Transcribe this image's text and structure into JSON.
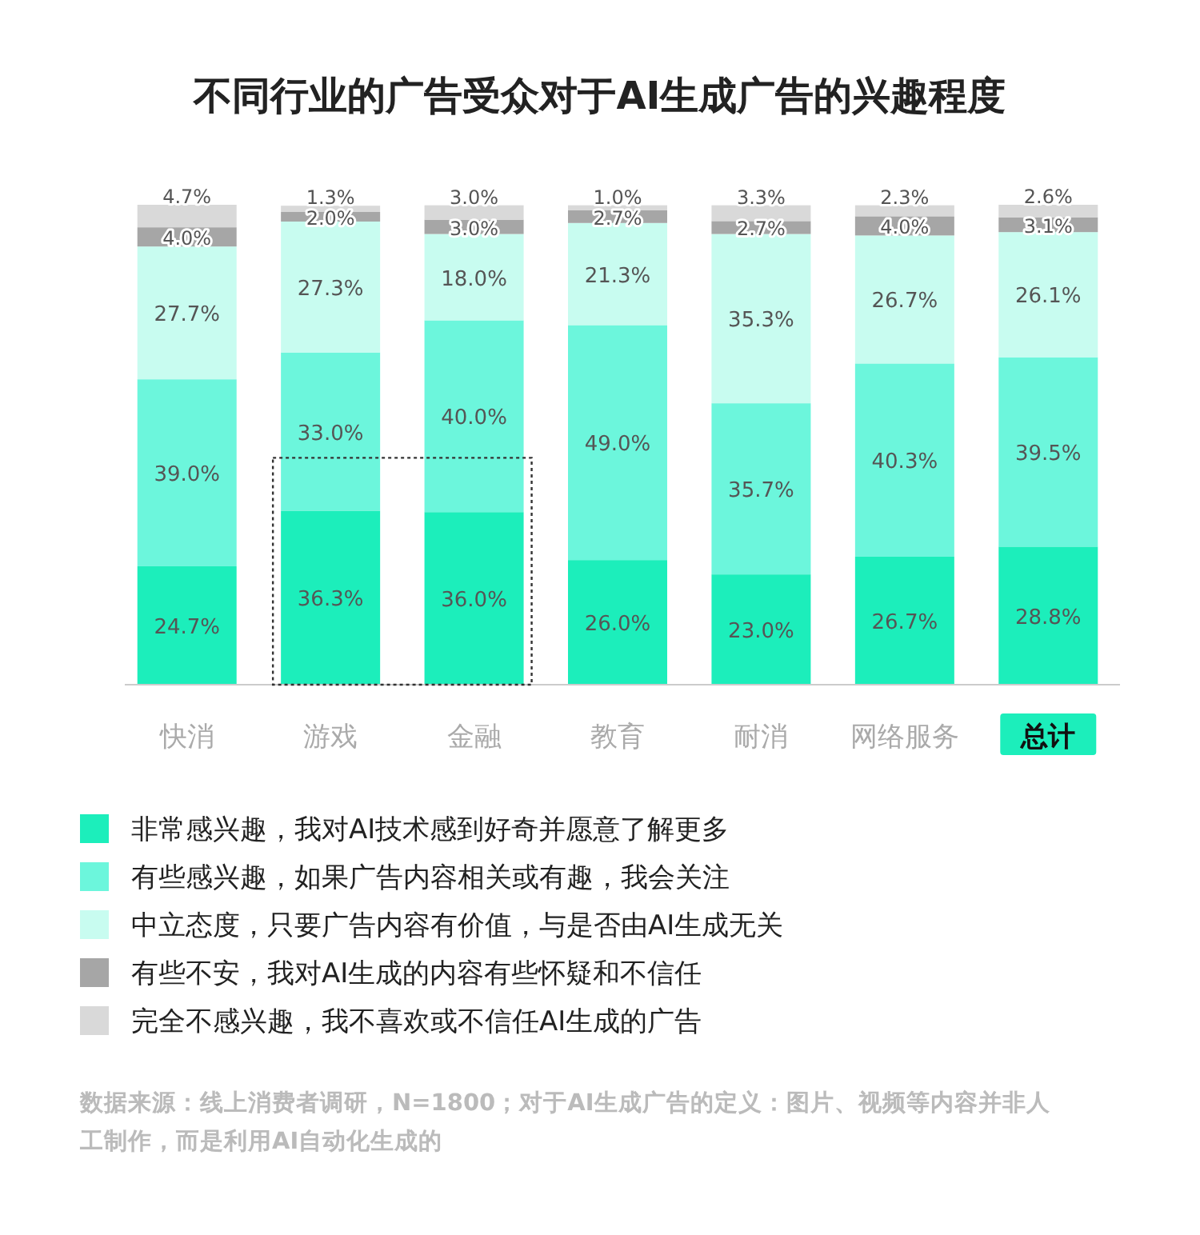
{
  "chart_data": {
    "type": "bar",
    "stacked": true,
    "title": "不同行业的广告受众对于AI生成广告的兴趣程度",
    "categories": [
      "快消",
      "游戏",
      "金融",
      "教育",
      "耐消",
      "网络服务",
      "总计"
    ],
    "series": [
      {
        "name": "非常感兴趣，我对AI技术感到好奇并愿意了解更多",
        "color": "#1ceebb",
        "values": [
          24.7,
          36.3,
          36.0,
          26.0,
          23.0,
          26.7,
          28.8
        ],
        "value_labels": [
          "24.7%",
          "36.3%",
          "36.0%",
          "26.0%",
          "23.0%",
          "26.7%",
          "28.8%"
        ]
      },
      {
        "name": "有些感兴趣，如果广告内容相关或有趣，我会关注",
        "color": "#6cf6dc",
        "values": [
          39.0,
          33.0,
          40.0,
          49.0,
          35.7,
          40.3,
          39.5
        ],
        "value_labels": [
          "39.0%",
          "33.0%",
          "40.0%",
          "49.0%",
          "35.7%",
          "40.3%",
          "39.5%"
        ]
      },
      {
        "name": "中立态度，只要广告内容有价值，与是否由AI生成无关",
        "color": "#c8fcf0",
        "values": [
          27.7,
          27.3,
          18.0,
          21.3,
          35.3,
          26.7,
          26.1
        ],
        "value_labels": [
          "27.7%",
          "27.3%",
          "18.0%",
          "21.3%",
          "35.3%",
          "26.7%",
          "26.1%"
        ]
      },
      {
        "name": "有些不安，我对AI生成的内容有些怀疑和不信任",
        "color": "#a6a6a6",
        "values": [
          4.0,
          2.0,
          3.0,
          2.7,
          2.7,
          4.0,
          3.1
        ],
        "value_labels": [
          "4.0%",
          "2.0%",
          "3.0%",
          "2.7%",
          "2.7%",
          "4.0%",
          "3.1%"
        ]
      },
      {
        "name": "完全不感兴趣，我不喜欢或不信任AI生成的广告",
        "color": "#d9d9d9",
        "values": [
          4.7,
          1.3,
          3.0,
          1.0,
          3.3,
          2.3,
          2.6
        ],
        "value_labels": [
          "4.7%",
          "1.3%",
          "3.0%",
          "1.0%",
          "3.3%",
          "2.3%",
          "2.6%"
        ]
      }
    ],
    "legend": "bottom left",
    "annotations": [
      "数据来源：线上消费者调研，N=1800；对于AI生成广告的定义：图片、视频等内容并非人工制作，而是利用AI自动化生成的"
    ]
  }
}
